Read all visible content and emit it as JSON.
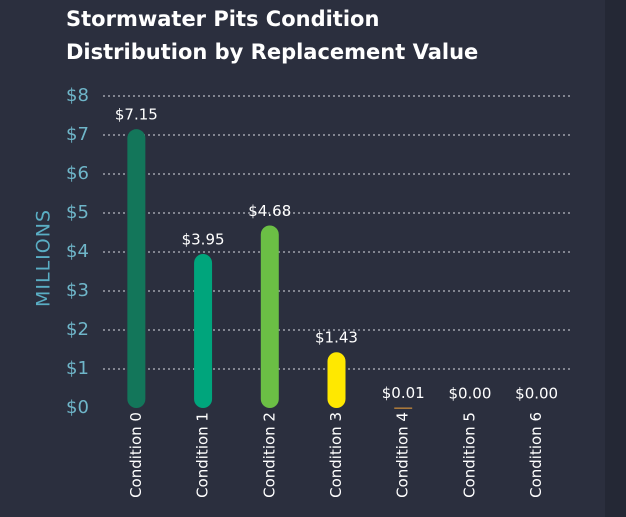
{
  "chart_data": {
    "type": "bar",
    "title": [
      "Stormwater Pits Condition",
      "Distribution by Replacement Value"
    ],
    "ylabel": "MILLIONS",
    "categories": [
      "Condition 0",
      "Condition 1",
      "Condition 2",
      "Condition 3",
      "Condition 4",
      "Condition 5",
      "Condition 6"
    ],
    "values": [
      7.15,
      3.95,
      4.68,
      1.43,
      0.01,
      0,
      0
    ],
    "value_labels": [
      "$7.15",
      "$3.95",
      "$4.68",
      "$1.43",
      "$0.01",
      "$0.00",
      "$0.00"
    ],
    "colors": [
      "#13765a",
      "#00a57c",
      "#6bbf45",
      "#ffe800",
      "#f2a33a",
      "#f2a33a",
      "#f2a33a"
    ],
    "ylim": [
      0,
      8
    ],
    "yticks": [
      {
        "value": 0,
        "label": "$0"
      },
      {
        "value": 1,
        "label": "$1"
      },
      {
        "value": 2,
        "label": "$2"
      },
      {
        "value": 3,
        "label": "$3"
      },
      {
        "value": 4,
        "label": "$4"
      },
      {
        "value": 5,
        "label": "$5"
      },
      {
        "value": 6,
        "label": "$6"
      },
      {
        "value": 7,
        "label": "$7"
      },
      {
        "value": 8,
        "label": "$8"
      }
    ],
    "grid": true
  }
}
